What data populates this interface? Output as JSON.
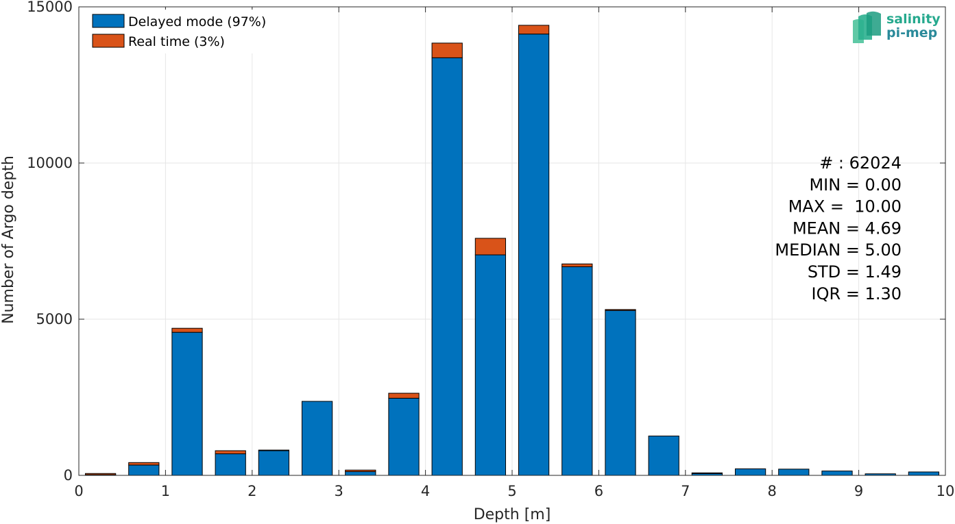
{
  "chart_data": {
    "type": "bar",
    "stacked": true,
    "xlabel": "Depth [m]",
    "ylabel": "Number of Argo depth",
    "xlim": [
      0,
      10
    ],
    "ylim": [
      0,
      15000
    ],
    "x_ticks": [
      "0",
      "1",
      "2",
      "3",
      "4",
      "5",
      "6",
      "7",
      "8",
      "9",
      "10"
    ],
    "y_ticks": [
      "0",
      "5000",
      "10000",
      "15000"
    ],
    "grid": true,
    "legend_position": "top-left",
    "bin_width": 0.5,
    "x": [
      0.25,
      0.75,
      1.25,
      1.75,
      2.25,
      2.75,
      3.25,
      3.75,
      4.25,
      4.75,
      5.25,
      5.75,
      6.25,
      6.75,
      7.25,
      7.75,
      8.25,
      8.75,
      9.25,
      9.75
    ],
    "series": [
      {
        "name": "Delayed mode (97%)",
        "color": "#0072bd",
        "values": [
          20,
          330,
          4580,
          690,
          790,
          2370,
          120,
          2470,
          13370,
          7060,
          14130,
          6680,
          5280,
          1260,
          60,
          210,
          200,
          140,
          50,
          110
        ]
      },
      {
        "name": "Real time (3%)",
        "color": "#d95319",
        "values": [
          40,
          80,
          130,
          100,
          20,
          0,
          50,
          160,
          470,
          530,
          280,
          90,
          30,
          0,
          20,
          0,
          0,
          0,
          0,
          0
        ]
      }
    ],
    "stats": [
      "# : 62024",
      "MIN = 0.00",
      "MAX =  10.00",
      "MEAN = 4.69",
      "MEDIAN = 5.00",
      "STD = 1.49",
      "IQR = 1.30"
    ]
  },
  "logo": {
    "line1": "salinity",
    "line2": "pi-mep"
  }
}
